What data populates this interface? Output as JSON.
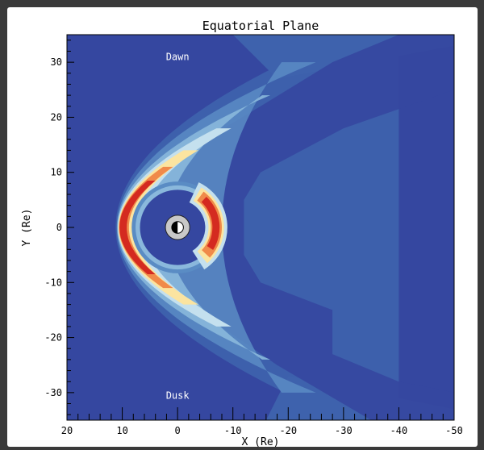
{
  "chart_data": {
    "type": "heatmap",
    "title": "Equatorial Plane",
    "xlabel": "X (Re)",
    "ylabel": "Y (Re)",
    "xlim": [
      20,
      -50
    ],
    "ylim": [
      -35,
      35
    ],
    "x_ticks": [
      20,
      10,
      0,
      -10,
      -20,
      -30,
      -40,
      -50
    ],
    "y_ticks": [
      30,
      20,
      10,
      0,
      -10,
      -20,
      -30
    ],
    "annotations": [
      {
        "text": "Dawn",
        "x": 0,
        "y": 31
      },
      {
        "text": "Dusk",
        "x": 0,
        "y": -30.5
      }
    ],
    "planet": {
      "x": 0,
      "y": 0,
      "radius_re": 2.2
    },
    "colors": {
      "background": "#3547a0",
      "low": "#3e62ad",
      "mid_low": "#5a8cc4",
      "mid": "#8ab8dc",
      "mid_high": "#c4e0ee",
      "yellow": "#fbe4a0",
      "orange": "#f08a4a",
      "red": "#d42a20",
      "dark_red": "#b01818"
    },
    "grid": false,
    "legend": "none"
  }
}
